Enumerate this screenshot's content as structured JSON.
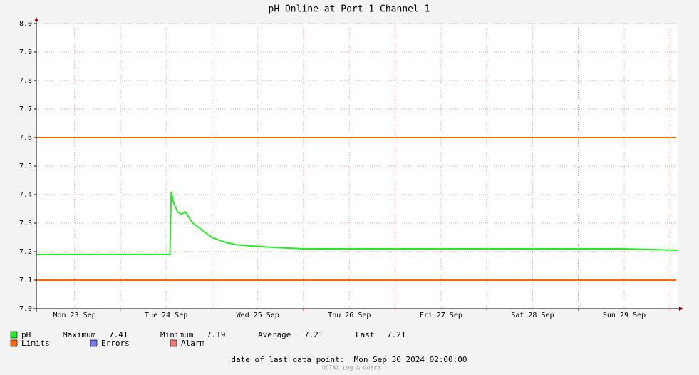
{
  "chart_data": {
    "type": "line",
    "title": "pH Online at Port 1 Channel 1",
    "xlim": [
      "2024-09-23 02:00",
      "2024-09-30 02:00"
    ],
    "xticks": [
      {
        "value": "2024-09-23 12:00",
        "label": "Mon 23 Sep"
      },
      {
        "value": "2024-09-24 12:00",
        "label": "Tue 24 Sep"
      },
      {
        "value": "2024-09-25 12:00",
        "label": "Wed 25 Sep"
      },
      {
        "value": "2024-09-26 12:00",
        "label": "Thu 26 Sep"
      },
      {
        "value": "2024-09-27 12:00",
        "label": "Fri 27 Sep"
      },
      {
        "value": "2024-09-28 12:00",
        "label": "Sat 28 Sep"
      },
      {
        "value": "2024-09-29 12:00",
        "label": "Sun 29 Sep"
      }
    ],
    "minor_xticks": [
      "2024-09-24 00:00",
      "2024-09-25 00:00",
      "2024-09-26 00:00",
      "2024-09-27 00:00",
      "2024-09-28 00:00",
      "2024-09-29 00:00",
      "2024-09-30 00:00"
    ],
    "ylim": [
      7.0,
      8.0
    ],
    "yticks": [
      {
        "value": 7.0,
        "label": "7.0"
      },
      7.1,
      7.2,
      7.3,
      7.4,
      7.5,
      7.6,
      7.7,
      7.8,
      7.9,
      {
        "value": 8.0,
        "label": "8.0"
      }
    ],
    "grid": true,
    "x": [
      "2024-09-23 02:00",
      "2024-09-23 12:00",
      "2024-09-23 22:00",
      "2024-09-24 08:00",
      "2024-09-24 13:00",
      "2024-09-24 13:20",
      "2024-09-24 14:00",
      "2024-09-24 15:00",
      "2024-09-24 16:00",
      "2024-09-24 17:00",
      "2024-09-24 18:00",
      "2024-09-24 19:00",
      "2024-09-24 20:00",
      "2024-09-24 22:00",
      "2024-09-25 00:00",
      "2024-09-25 03:00",
      "2024-09-25 06:00",
      "2024-09-25 10:00",
      "2024-09-25 16:00",
      "2024-09-26 00:00",
      "2024-09-27 00:00",
      "2024-09-28 00:00",
      "2024-09-29 00:00",
      "2024-09-29 12:00",
      "2024-09-30 02:00"
    ],
    "series": [
      {
        "name": "pH",
        "color": "#22ee22",
        "values": [
          7.19,
          7.19,
          7.19,
          7.19,
          7.19,
          7.41,
          7.37,
          7.34,
          7.33,
          7.34,
          7.32,
          7.3,
          7.29,
          7.27,
          7.25,
          7.235,
          7.225,
          7.22,
          7.215,
          7.21,
          7.21,
          7.21,
          7.21,
          7.21,
          7.205
        ]
      }
    ],
    "limits": {
      "name": "Limits",
      "color": "#ff6600",
      "values": [
        7.6,
        7.1
      ]
    },
    "errors": {
      "name": "Errors",
      "color": "#7777ff"
    },
    "alarm": {
      "name": "Alarm",
      "color": "#ff7777"
    },
    "stats": [
      {
        "label": "Maximum",
        "value": 7.41
      },
      {
        "label": "Minimum",
        "value": 7.19
      },
      {
        "label": "Average",
        "value": 7.21
      },
      {
        "label": "Last",
        "value": 7.21
      }
    ],
    "footer": "date of last data point:  Mon Sep 30 2024 02:00:00",
    "watermark": "OCTAX Log & Guard"
  }
}
